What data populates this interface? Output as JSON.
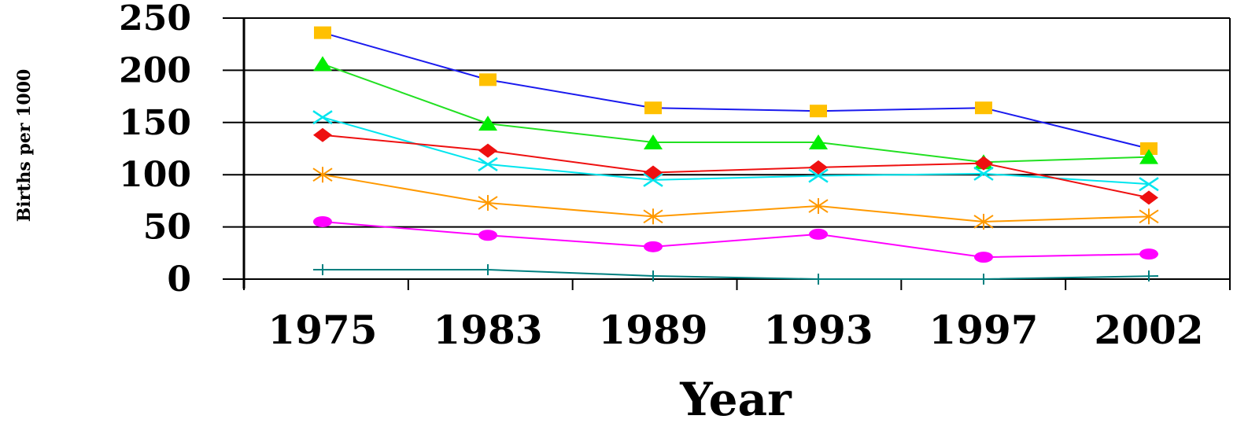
{
  "chart_data": {
    "type": "line",
    "title": "",
    "xlabel": "Year",
    "ylabel": "Births per 1000",
    "categories": [
      "1975",
      "1983",
      "1989",
      "1993",
      "1997",
      "2002"
    ],
    "ylim": [
      0,
      250
    ],
    "yticks": [
      "0",
      "50",
      "100",
      "150",
      "200",
      "250"
    ],
    "grid": true,
    "legend": "none",
    "series": [
      {
        "values": [
          236,
          191,
          164,
          161,
          164,
          125
        ],
        "line_color": "#1a1aee",
        "marker": "square",
        "marker_color": "#ffc000"
      },
      {
        "values": [
          206,
          149,
          131,
          131,
          112,
          117
        ],
        "line_color": "#22e022",
        "marker": "triangle",
        "marker_color": "#00ee00"
      },
      {
        "values": [
          155,
          110,
          95,
          99,
          101,
          91
        ],
        "line_color": "#00e5ee",
        "marker": "x",
        "marker_color": "#00e5ee"
      },
      {
        "values": [
          138,
          123,
          102,
          107,
          111,
          78
        ],
        "line_color": "#ee1010",
        "marker": "diamond",
        "marker_color": "#ee1010"
      },
      {
        "values": [
          100,
          73,
          60,
          70,
          55,
          60
        ],
        "line_color": "#ff9900",
        "marker": "asterisk",
        "marker_color": "#ff9900"
      },
      {
        "values": [
          55,
          42,
          31,
          43,
          21,
          24
        ],
        "line_color": "#ff00ff",
        "marker": "circle",
        "marker_color": "#ff00ff"
      },
      {
        "values": [
          9,
          9,
          3,
          0,
          0,
          3
        ],
        "line_color": "#008080",
        "marker": "plus",
        "marker_color": "#008080"
      }
    ]
  }
}
